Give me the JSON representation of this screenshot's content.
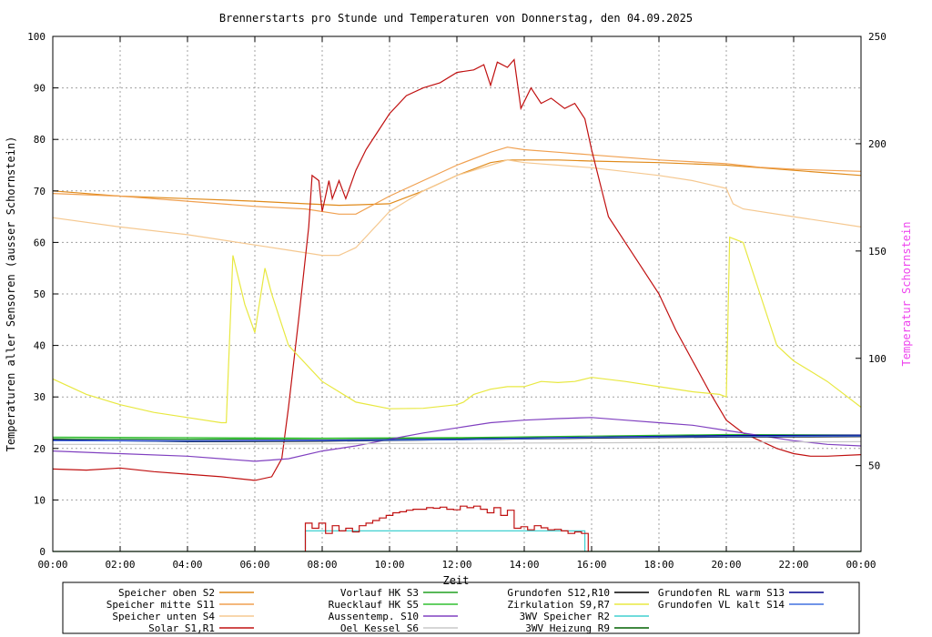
{
  "chart_data": {
    "type": "line",
    "title": "Brennerstarts pro Stunde und Temperaturen von Donnerstag, den 04.09.2025",
    "xlabel": "Zeit",
    "ylabel": "Temperaturen aller Sensoren (ausser Schornstein)",
    "y2label": "Temperatur Schornstein",
    "xlim": [
      0,
      24
    ],
    "ylim": [
      0,
      100
    ],
    "y2lim": [
      10,
      250
    ],
    "x_ticks": [
      "00:00",
      "02:00",
      "04:00",
      "06:00",
      "08:00",
      "10:00",
      "12:00",
      "14:00",
      "16:00",
      "18:00",
      "20:00",
      "22:00",
      "00:00"
    ],
    "y_ticks": [
      0,
      10,
      20,
      30,
      40,
      50,
      60,
      70,
      80,
      90,
      100
    ],
    "y2_ticks": [
      50,
      100,
      150,
      200,
      250
    ],
    "grid": true,
    "legend_position": "bottom",
    "colors": {
      "y2label": "#ee44ee"
    },
    "legend": [
      {
        "name": "Speicher oben",
        "code": "S2",
        "color": "#e08a1a"
      },
      {
        "name": "Speicher mitte",
        "code": "S11",
        "color": "#f0a050"
      },
      {
        "name": "Speicher unten",
        "code": "S4",
        "color": "#f5c890"
      },
      {
        "name": "Solar",
        "code": "S1,R1",
        "color": "#c01010"
      },
      {
        "name": "Vorlauf HK",
        "code": "S3",
        "color": "#20a020"
      },
      {
        "name": "Ruecklauf HK",
        "code": "S5",
        "color": "#30c030"
      },
      {
        "name": "Aussentemp.",
        "code": "S10",
        "color": "#8040c0"
      },
      {
        "name": "Oel Kessel",
        "code": "S6",
        "color": "#c8c8c8"
      },
      {
        "name": "Grundofen",
        "code": "S12,R10",
        "color": "#000000"
      },
      {
        "name": "Zirkulation",
        "code": "S9,R7",
        "color": "#e8e840"
      },
      {
        "name": "3WV Speicher",
        "code": "R2",
        "color": "#40d0d0"
      },
      {
        "name": "3WV Heizung",
        "code": "R9",
        "color": "#006000"
      },
      {
        "name": "Grundofen RL warm",
        "code": "S13",
        "color": "#00008b"
      },
      {
        "name": "Grundofen VL kalt",
        "code": "S14",
        "color": "#4070e0"
      }
    ],
    "series": [
      {
        "legend_index": 0,
        "axis": "y1",
        "x": [
          0,
          2,
          4,
          6,
          7.5,
          8.5,
          9,
          10,
          11,
          12,
          13,
          13.5,
          14,
          15,
          16,
          18,
          20,
          21,
          22,
          23,
          24
        ],
        "y": [
          70,
          69,
          68.5,
          68,
          67.5,
          67.2,
          67.3,
          67.5,
          70,
          73,
          75.5,
          76,
          76,
          76,
          75.8,
          75.5,
          75,
          74.5,
          74,
          73.5,
          73
        ]
      },
      {
        "legend_index": 1,
        "axis": "y1",
        "x": [
          0,
          2,
          4,
          6,
          7.5,
          8.5,
          9,
          10,
          11,
          12,
          13,
          13.5,
          14,
          15,
          16,
          18,
          20,
          21,
          22,
          23,
          24
        ],
        "y": [
          69.5,
          69,
          68,
          67,
          66.5,
          65.5,
          65.5,
          69,
          72,
          75,
          77.5,
          78.5,
          78,
          77.5,
          77,
          76,
          75.3,
          74.6,
          74.2,
          74,
          73.8
        ]
      },
      {
        "legend_index": 2,
        "axis": "y1",
        "x": [
          0,
          2,
          4,
          6,
          7,
          8,
          8.5,
          9,
          10,
          11,
          12,
          13,
          13.5,
          14,
          16,
          18,
          19,
          20,
          20.2,
          20.5,
          22,
          24
        ],
        "y": [
          64.8,
          63,
          61.5,
          59.5,
          58.5,
          57.5,
          57.5,
          59,
          66,
          70,
          73,
          75,
          76,
          75.5,
          74.5,
          73,
          72,
          70.5,
          67.5,
          66.5,
          65,
          63
        ]
      },
      {
        "legend_index": 3,
        "axis": "y1",
        "x": [
          0,
          1,
          2,
          3,
          4,
          5,
          6,
          6.5,
          6.8,
          7,
          7.3,
          7.6,
          7.7,
          7.9,
          8,
          8.2,
          8.3,
          8.5,
          8.7,
          9,
          9.3,
          9.6,
          10,
          10.5,
          11,
          11.5,
          12,
          12.5,
          12.8,
          13,
          13.2,
          13.5,
          13.7,
          13.9,
          14.2,
          14.5,
          14.8,
          15.2,
          15.5,
          15.8,
          16,
          16.5,
          17,
          17.5,
          18,
          18.5,
          19,
          19.5,
          20,
          20.5,
          21,
          21.5,
          22,
          22.5,
          23,
          24
        ],
        "y": [
          16,
          15.8,
          16.2,
          15.5,
          15,
          14.5,
          13.8,
          14.5,
          18,
          28,
          45,
          63,
          73,
          72,
          66,
          72,
          68.5,
          72,
          68.5,
          74,
          78,
          81,
          85,
          88.5,
          90,
          91,
          93,
          93.5,
          94.5,
          90.5,
          95,
          94,
          95.5,
          86,
          90,
          87,
          88,
          86,
          87,
          84,
          78,
          65,
          60,
          55,
          50,
          43,
          37,
          31,
          25.5,
          23,
          21.5,
          20,
          19,
          18.5,
          18.5,
          18.8
        ]
      },
      {
        "legend_index": 4,
        "axis": "y1",
        "x": [
          0,
          4,
          8,
          12,
          16,
          20,
          24
        ],
        "y": [
          21.9,
          21.8,
          21.9,
          22.0,
          22.1,
          22.3,
          22.5
        ]
      },
      {
        "legend_index": 5,
        "axis": "y1",
        "x": [
          0,
          4,
          8,
          12,
          16,
          20,
          24
        ],
        "y": [
          22.2,
          22.1,
          22.0,
          22.1,
          22.4,
          22.7,
          22.6
        ]
      },
      {
        "legend_index": 6,
        "axis": "y1",
        "x": [
          0,
          2,
          4,
          6,
          7,
          8,
          9,
          10,
          11,
          12,
          13,
          14,
          15,
          16,
          17,
          18,
          19,
          20,
          21,
          22,
          23,
          24
        ],
        "y": [
          19.5,
          19,
          18.5,
          17.5,
          18,
          19.5,
          20.5,
          21.8,
          23,
          24,
          25,
          25.5,
          25.8,
          26,
          25.5,
          25,
          24.5,
          23.5,
          22.5,
          21.5,
          20.8,
          20.5
        ]
      },
      {
        "legend_index": 7,
        "axis": "y1",
        "x": [
          0,
          4,
          8,
          12,
          16,
          20,
          24
        ],
        "y": [
          20.8,
          20.8,
          20.9,
          21.0,
          21.1,
          21.2,
          21.3
        ]
      },
      {
        "legend_index": 8,
        "axis": "y1",
        "x": [
          0,
          4,
          8,
          12,
          16,
          20,
          24
        ],
        "y": [
          21.7,
          21.3,
          21.4,
          21.7,
          22.0,
          22.2,
          22.3
        ]
      },
      {
        "legend_index": 9,
        "axis": "y1",
        "x": [
          0,
          1,
          2,
          3,
          4,
          5,
          5.15,
          5.35,
          5.7,
          6,
          6.3,
          6.5,
          7,
          8,
          9,
          10,
          11,
          12,
          12.2,
          12.5,
          13,
          13.5,
          14,
          14.5,
          15,
          15.5,
          16,
          17,
          18,
          19,
          19.8,
          20,
          20.1,
          20.3,
          20.5,
          21,
          21.5,
          22,
          23,
          24
        ],
        "y": [
          33.5,
          30.5,
          28.5,
          27,
          26,
          25,
          25,
          57.5,
          48,
          42.5,
          55,
          50,
          40,
          33,
          29,
          27.7,
          27.8,
          28.5,
          29,
          30.5,
          31.5,
          32,
          32,
          33,
          32.8,
          33,
          33.8,
          33,
          32,
          31,
          30.5,
          30,
          61,
          60.5,
          60,
          50,
          40,
          37,
          33,
          28
        ]
      },
      {
        "legend_index": 10,
        "axis": "y1",
        "x": [
          7.5,
          7.5,
          8.5,
          13.6,
          15.8,
          15.8
        ],
        "y": [
          0,
          4,
          4,
          4,
          4,
          0
        ]
      },
      {
        "legend_index": 11,
        "axis": "y1",
        "x": [
          0,
          24
        ],
        "y": [
          0,
          0
        ]
      },
      {
        "legend_index": 12,
        "axis": "y1",
        "x": [
          0,
          4,
          8,
          12,
          16,
          20,
          24
        ],
        "y": [
          21.6,
          21.5,
          21.6,
          21.8,
          22.2,
          22.5,
          22.6
        ]
      },
      {
        "legend_index": 13,
        "axis": "y1",
        "x": [
          0,
          4,
          8,
          12,
          16,
          20,
          24
        ],
        "y": [
          21.5,
          21.4,
          21.5,
          21.7,
          22.1,
          22.3,
          22.4
        ]
      }
    ],
    "burner_starts": {
      "legend_index": 3,
      "axis": "y1",
      "x": [
        7.5,
        7.7,
        7.9,
        8.1,
        8.3,
        8.5,
        8.7,
        8.9,
        9.1,
        9.3,
        9.5,
        9.7,
        9.9,
        10.1,
        10.3,
        10.5,
        10.7,
        10.9,
        11.1,
        11.3,
        11.5,
        11.7,
        11.9,
        12.1,
        12.3,
        12.5,
        12.7,
        12.9,
        13.1,
        13.3,
        13.5,
        13.7,
        13.9,
        14.1,
        14.3,
        14.5,
        14.7,
        14.9,
        15.1,
        15.3,
        15.5,
        15.7
      ],
      "y": [
        5.5,
        4.5,
        5.5,
        3.5,
        5,
        4,
        4.5,
        3.8,
        5,
        5.5,
        6,
        6.5,
        7,
        7.5,
        7.7,
        8,
        8.2,
        8.2,
        8.5,
        8.4,
        8.6,
        8.2,
        8.1,
        8.8,
        8.5,
        8.8,
        8.2,
        7.5,
        8.5,
        7,
        8,
        4.5,
        4.8,
        4.2,
        5,
        4.6,
        4.2,
        4.3,
        4,
        3.5,
        3.8,
        3.5
      ]
    }
  }
}
